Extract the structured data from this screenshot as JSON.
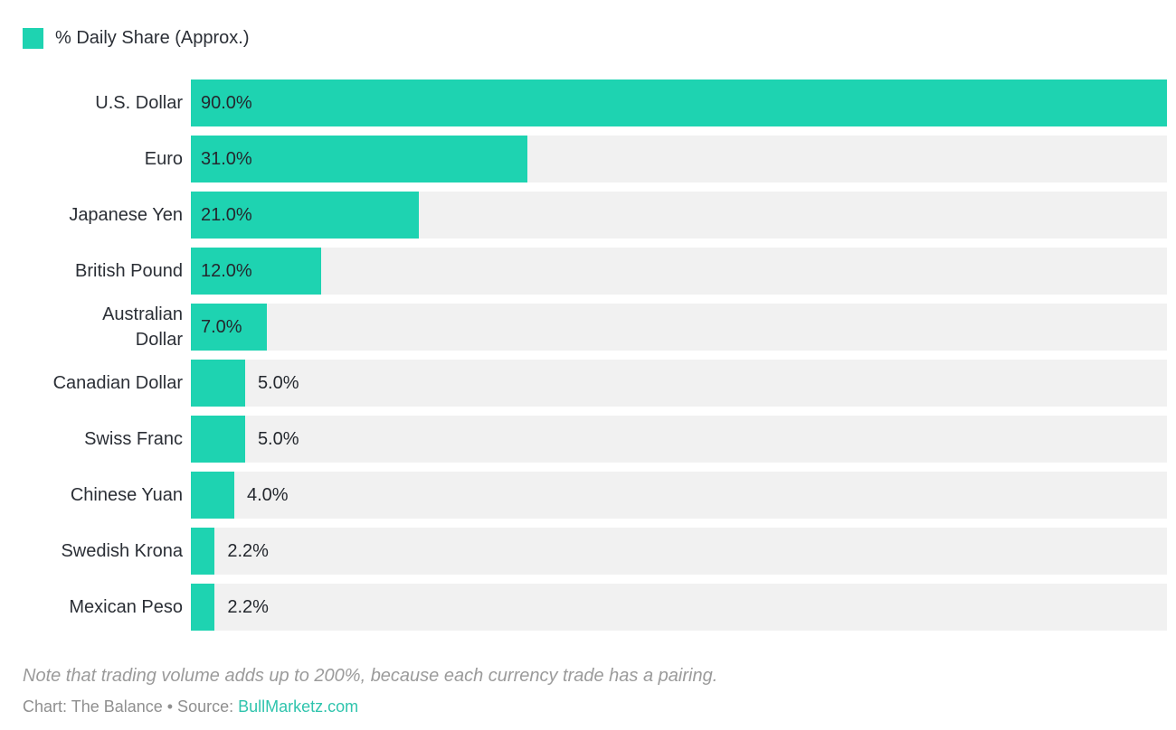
{
  "chart_data": {
    "type": "bar",
    "orientation": "horizontal",
    "legend": "% Daily Share (Approx.)",
    "legend_position": "top-left",
    "grid": false,
    "xmax": 90,
    "categories": [
      "U.S. Dollar",
      "Euro",
      "Japanese Yen",
      "British Pound",
      "Australian Dollar",
      "Canadian Dollar",
      "Swiss Franc",
      "Chinese Yuan",
      "Swedish Krona",
      "Mexican Peso"
    ],
    "values": [
      90.0,
      31.0,
      21.0,
      12.0,
      7.0,
      5.0,
      5.0,
      4.0,
      2.2,
      2.2
    ],
    "rows": [
      {
        "label": "U.S. Dollar",
        "value": 90.0,
        "display": "90.0%",
        "label_inside": true
      },
      {
        "label": "Euro",
        "value": 31.0,
        "display": "31.0%",
        "label_inside": true
      },
      {
        "label": "Japanese Yen",
        "value": 21.0,
        "display": "21.0%",
        "label_inside": true
      },
      {
        "label": "British Pound",
        "value": 12.0,
        "display": "12.0%",
        "label_inside": true
      },
      {
        "label": "Australian\nDollar",
        "value": 7.0,
        "display": "7.0%",
        "label_inside": true
      },
      {
        "label": "Canadian Dollar",
        "value": 5.0,
        "display": "5.0%",
        "label_inside": false
      },
      {
        "label": "Swiss Franc",
        "value": 5.0,
        "display": "5.0%",
        "label_inside": false
      },
      {
        "label": "Chinese Yuan",
        "value": 4.0,
        "display": "4.0%",
        "label_inside": false
      },
      {
        "label": "Swedish Krona",
        "value": 2.2,
        "display": "2.2%",
        "label_inside": false
      },
      {
        "label": "Mexican Peso",
        "value": 2.2,
        "display": "2.2%",
        "label_inside": false
      }
    ],
    "note": "Note that trading volume adds up to 200%, because each currency trade has a pairing.",
    "credit": {
      "prefix": "Chart: The Balance • Source: ",
      "link_text": "BullMarketz.com"
    },
    "colors": {
      "bar": "#1ed3b1",
      "track": "#f1f1f1",
      "text": "#2b2f36",
      "valtext": "#24282e",
      "note": "#9b9b9b",
      "credit": "#8f8f8f",
      "link": "#2fc4ad"
    }
  }
}
